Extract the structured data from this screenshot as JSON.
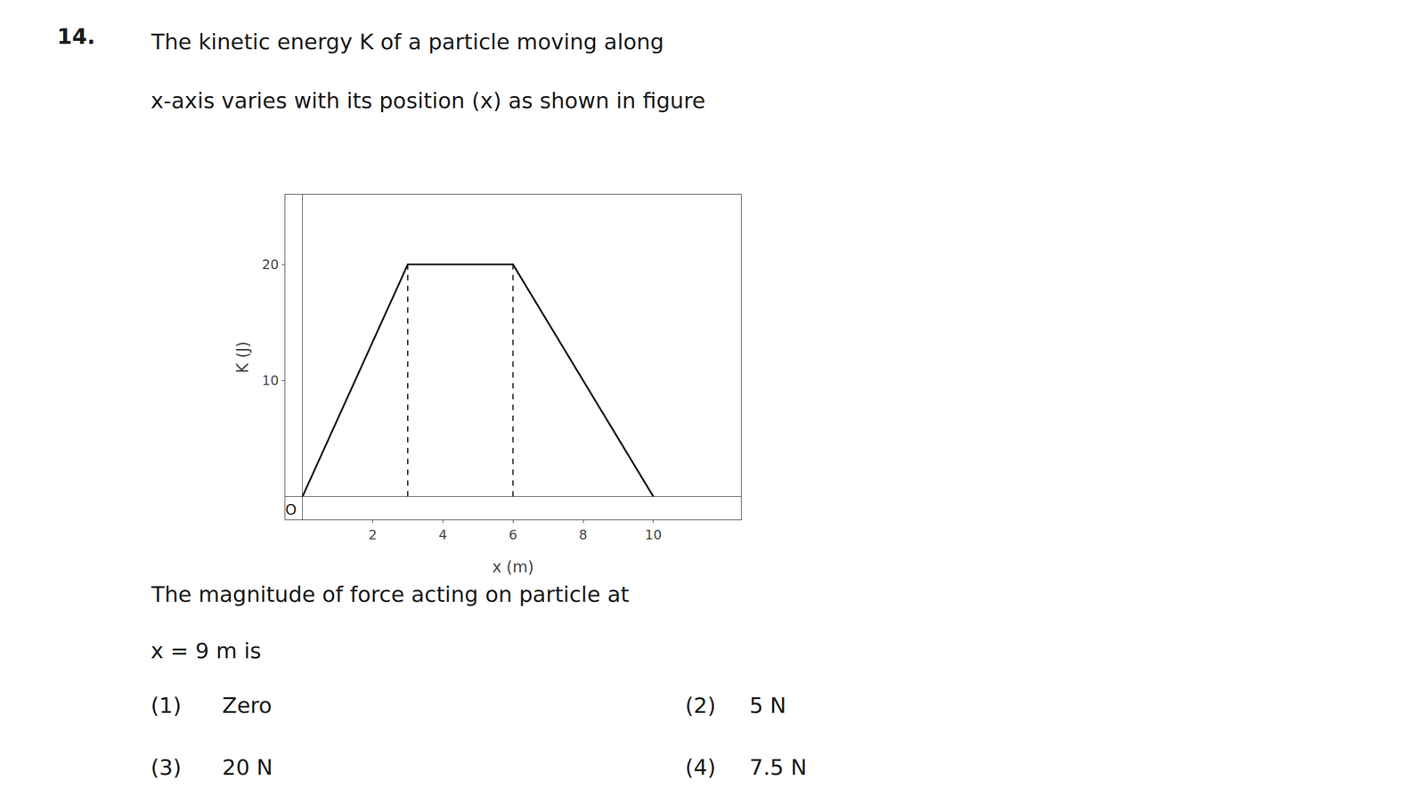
{
  "chart_data": {
    "type": "line",
    "title": "14.",
    "subtitle": [
      "The kinetic energy K of a particle moving along",
      "x-axis varies with its position (x) as shown in figure"
    ],
    "xlabel": "x (m)",
    "ylabel": "K (J)",
    "annotations": [
      "O",
      "The magnitude of force acting on particle at",
      "x = 9 m is",
      "(1)",
      "Zero",
      "(2)",
      "5 N",
      "(3)",
      "20 N",
      "(4)",
      "7.5 N"
    ],
    "series": [
      {
        "x": [
          0,
          3,
          6,
          10
        ],
        "values": [
          0,
          20,
          20,
          0
        ],
        "color": "#1a1a1a"
      },
      {
        "x": [
          3,
          3
        ],
        "values": [
          0,
          20
        ],
        "color": "#1a1a1a",
        "line_style": "dashed"
      },
      {
        "x": [
          6,
          6
        ],
        "values": [
          0,
          20
        ],
        "color": "#1a1a1a",
        "line_style": "dashed"
      }
    ],
    "xlim": [
      -0.5,
      12.5
    ],
    "ylim": [
      -2,
      26
    ],
    "xticks": [
      2,
      4,
      6,
      8,
      10
    ],
    "yticks": [
      10,
      20
    ],
    "grid": false
  }
}
